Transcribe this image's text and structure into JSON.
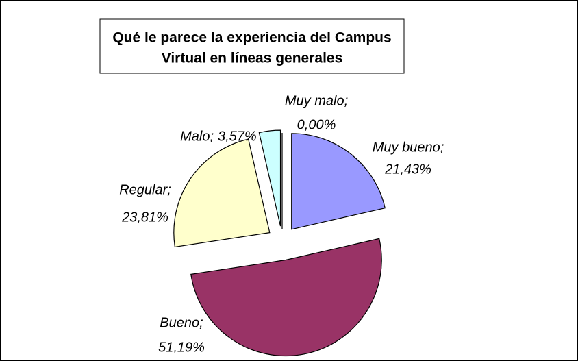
{
  "chart_data": {
    "type": "pie",
    "title": [
      "Qué le parece la experiencia del Campus",
      "Virtual en líneas generales"
    ],
    "categories": [
      "Muy bueno;",
      "Bueno;",
      "Regular;",
      "Malo;",
      "Muy malo;"
    ],
    "values": [
      21.43,
      51.19,
      23.81,
      3.57,
      0.0
    ],
    "value_labels": [
      "21,43%",
      "51,19%",
      "23,81%",
      "3,57%",
      "0,00%"
    ],
    "colors": [
      "#9999ff",
      "#993366",
      "#ffffcc",
      "#ccffff",
      "#660066"
    ]
  }
}
